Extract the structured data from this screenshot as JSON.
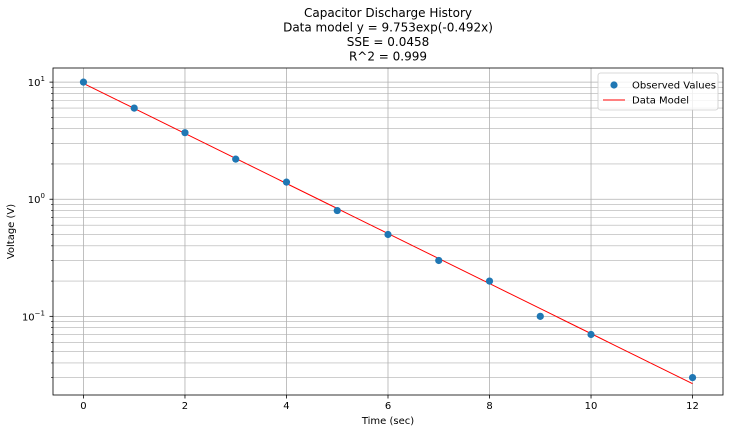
{
  "chart_data": {
    "type": "scatter",
    "title_lines": [
      "Capacitor Discharge History",
      "Data model y = 9.753exp(-0.492x)",
      "SSE = 0.0458",
      "R^2 = 0.999"
    ],
    "xlabel": "Time (sec)",
    "ylabel": "Voltage (V)",
    "xlim": [
      -0.6,
      12.6
    ],
    "ylim": [
      0.0213,
      13.2
    ],
    "yscale": "log",
    "grid": true,
    "legend_position": "top-right",
    "x_ticks": [
      0,
      2,
      4,
      6,
      8,
      10,
      12
    ],
    "y_ticks": [
      {
        "value": 0.1,
        "base": "10",
        "exp": "−1"
      },
      {
        "value": 1,
        "base": "10",
        "exp": "0"
      },
      {
        "value": 10,
        "base": "10",
        "exp": "1"
      }
    ],
    "series": [
      {
        "name": "Observed Values",
        "kind": "scatter",
        "color": "#1f77b4",
        "x": [
          0,
          1,
          2,
          3,
          4,
          5,
          6,
          7,
          8,
          9,
          10,
          12
        ],
        "y": [
          10,
          6,
          3.7,
          2.2,
          1.4,
          0.8,
          0.5,
          0.3,
          0.2,
          0.1,
          0.07,
          0.03
        ]
      },
      {
        "name": "Data Model",
        "kind": "line",
        "color": "#ff0000",
        "model": {
          "a": 9.753,
          "b": -0.492
        },
        "x_range": [
          0,
          12
        ]
      }
    ]
  }
}
